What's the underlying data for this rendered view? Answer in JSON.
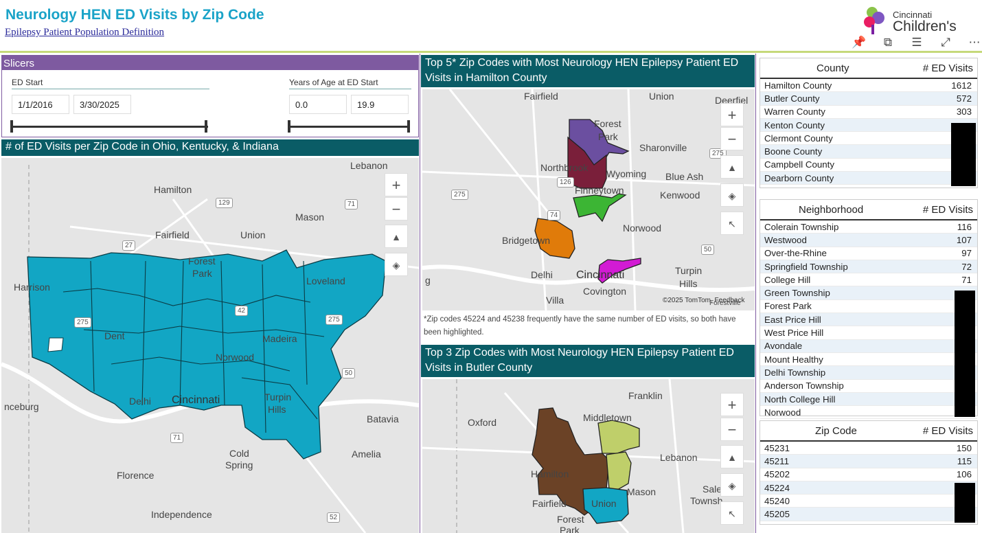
{
  "header": {
    "title": "Neurology HEN ED Visits by Zip Code",
    "subtitle_link": "Epilepsy Patient Population Definition",
    "logo_line1": "Cincinnati",
    "logo_line2": "Children's"
  },
  "toolbar_icons": [
    "pin-icon",
    "copy-icon",
    "filter-icon",
    "expand-icon",
    "more-icon"
  ],
  "slicers": {
    "title": "Slicers",
    "ed_start": {
      "label": "ED Start",
      "from": "1/1/2016",
      "to": "3/30/2025"
    },
    "age": {
      "label": "Years of Age at ED Start",
      "from": "0.0",
      "to": "19.9"
    }
  },
  "map1": {
    "title": "# of ED Visits per Zip Code in Ohio, Kentucky, & Indiana",
    "labels": [
      "Lebanon",
      "Hamilton",
      "Mason",
      "Fairfield",
      "Union",
      "Forest",
      "Park",
      "Loveland",
      "Harrison",
      "Dent",
      "Madeira",
      "Norwood",
      "Delhi",
      "Cincinnati",
      "Turpin",
      "Hills",
      "Batavia",
      "Cold",
      "Spring",
      "Amelia",
      "Florence",
      "Independence",
      "nceburg"
    ],
    "shields": [
      "129",
      "71",
      "27",
      "275",
      "42",
      "275",
      "50",
      "71",
      "52"
    ],
    "fill_color": "#12a6c4"
  },
  "map2": {
    "title": "Top 5* Zip Codes with Most Neurology HEN Epilepsy Patient ED Visits in Hamilton County",
    "labels": [
      "Fairfield",
      "Union",
      "Deerfiel",
      "Forest",
      "Park",
      "Sharonville",
      "Northbrook",
      "Wyoming",
      "Blue Ash",
      "Finneytown",
      "Kenwood",
      "Bridgetown",
      "Norwood",
      "Delhi",
      "Cincinnati",
      "Covington",
      "Turpin",
      "Hills",
      "Villa",
      "Forestville",
      "g"
    ],
    "shields": [
      "275",
      "126",
      "74",
      "275",
      "50"
    ],
    "attribution": "©2025 TomTom, Feedback",
    "note": "*Zip codes 45224 and 45238 frequently have the same number of ED visits, so both have been highlighted."
  },
  "map3": {
    "title": "Top 3 Zip Codes with Most Neurology HEN Epilepsy Patient ED Visits in Butler County",
    "labels": [
      "Franklin",
      "Oxford",
      "Middletown",
      "Lebanon",
      "Hamilton",
      "Mason",
      "Fairfield",
      "Union",
      "Forest",
      "Park",
      "Saler",
      "Townsh"
    ]
  },
  "county_table": {
    "col1": "County",
    "col2": "# ED Visits",
    "rows": [
      {
        "name": "Hamilton County",
        "value": "1612"
      },
      {
        "name": "Butler County",
        "value": "572"
      },
      {
        "name": "Warren County",
        "value": "303"
      },
      {
        "name": "Kenton County",
        "value": ""
      },
      {
        "name": "Clermont County",
        "value": ""
      },
      {
        "name": "Boone County",
        "value": ""
      },
      {
        "name": "Campbell County",
        "value": ""
      },
      {
        "name": "Dearborn County",
        "value": ""
      }
    ]
  },
  "neighborhood_table": {
    "col1": "Neighborhood",
    "col2": "# ED Visits",
    "rows": [
      {
        "name": "Colerain Township",
        "value": "116"
      },
      {
        "name": "Westwood",
        "value": "107"
      },
      {
        "name": "Over-the-Rhine",
        "value": "97"
      },
      {
        "name": "Springfield Township",
        "value": "72"
      },
      {
        "name": "College Hill",
        "value": "71"
      },
      {
        "name": "Green Township",
        "value": ""
      },
      {
        "name": "Forest Park",
        "value": ""
      },
      {
        "name": "East Price Hill",
        "value": ""
      },
      {
        "name": "West Price Hill",
        "value": ""
      },
      {
        "name": "Avondale",
        "value": ""
      },
      {
        "name": "Mount Healthy",
        "value": ""
      },
      {
        "name": "Delhi Township",
        "value": ""
      },
      {
        "name": "Anderson Township",
        "value": ""
      },
      {
        "name": "North College Hill",
        "value": ""
      },
      {
        "name": "Norwood",
        "value": ""
      }
    ]
  },
  "zip_table": {
    "col1": "Zip Code",
    "col2": "# ED Visits",
    "rows": [
      {
        "name": "45231",
        "value": "150"
      },
      {
        "name": "45211",
        "value": "115"
      },
      {
        "name": "45202",
        "value": "106"
      },
      {
        "name": "45224",
        "value": ""
      },
      {
        "name": "45240",
        "value": ""
      },
      {
        "name": "45205",
        "value": ""
      }
    ]
  }
}
